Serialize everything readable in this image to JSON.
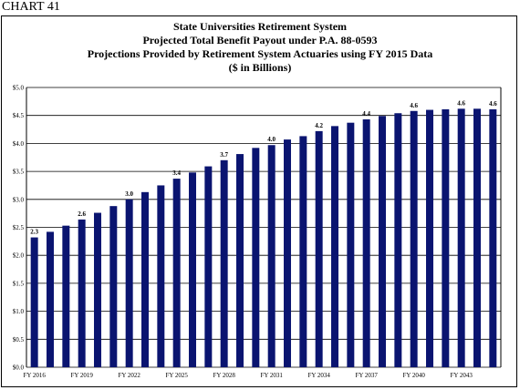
{
  "header": {
    "chart_label": "CHART 41"
  },
  "chart_data": {
    "type": "bar",
    "title": "State Universities Retirement System",
    "subtitle_lines": [
      "Projected Total Benefit Payout under P.A. 88-0593",
      "Projections Provided by Retirement System Actuaries using FY 2015 Data",
      "($ in Billions)"
    ],
    "categories": [
      "FY 2016",
      "FY 2017",
      "FY 2018",
      "FY 2019",
      "FY 2020",
      "FY 2021",
      "FY 2022",
      "FY 2023",
      "FY 2024",
      "FY 2025",
      "FY 2026",
      "FY 2027",
      "FY 2028",
      "FY 2029",
      "FY 2030",
      "FY 2031",
      "FY 2032",
      "FY 2033",
      "FY 2034",
      "FY 2035",
      "FY 2036",
      "FY 2037",
      "FY 2038",
      "FY 2039",
      "FY 2040",
      "FY 2041",
      "FY 2042",
      "FY 2043",
      "FY 2044",
      "FY 2045"
    ],
    "values": [
      2.32,
      2.42,
      2.53,
      2.64,
      2.76,
      2.88,
      3.0,
      3.13,
      3.25,
      3.37,
      3.48,
      3.59,
      3.7,
      3.81,
      3.92,
      3.97,
      4.07,
      4.13,
      4.22,
      4.31,
      4.37,
      4.43,
      4.49,
      4.54,
      4.58,
      4.6,
      4.61,
      4.62,
      4.62,
      4.61
    ],
    "x_tick_labels": [
      "FY 2016",
      "FY 2019",
      "FY 2022",
      "FY 2025",
      "FY 2028",
      "FY 2031",
      "FY 2034",
      "FY 2037",
      "FY 2040",
      "FY 2043"
    ],
    "x_tick_indices": [
      0,
      3,
      6,
      9,
      12,
      15,
      18,
      21,
      24,
      27
    ],
    "data_labels": [
      {
        "index": 0,
        "text": "2.3"
      },
      {
        "index": 3,
        "text": "2.6"
      },
      {
        "index": 6,
        "text": "3.0"
      },
      {
        "index": 9,
        "text": "3.4"
      },
      {
        "index": 12,
        "text": "3.7"
      },
      {
        "index": 15,
        "text": "4.0"
      },
      {
        "index": 18,
        "text": "4.2"
      },
      {
        "index": 21,
        "text": "4.4"
      },
      {
        "index": 24,
        "text": "4.6"
      },
      {
        "index": 27,
        "text": "4.6"
      },
      {
        "index": 29,
        "text": "4.6"
      }
    ],
    "y_ticks": [
      "$0.0",
      "$0.5",
      "$1.0",
      "$1.5",
      "$2.0",
      "$2.5",
      "$3.0",
      "$3.5",
      "$4.0",
      "$4.5",
      "$5.0"
    ],
    "ylim": [
      0,
      5
    ],
    "grid": true,
    "legend": "none",
    "bar_color": "#0a1470"
  }
}
